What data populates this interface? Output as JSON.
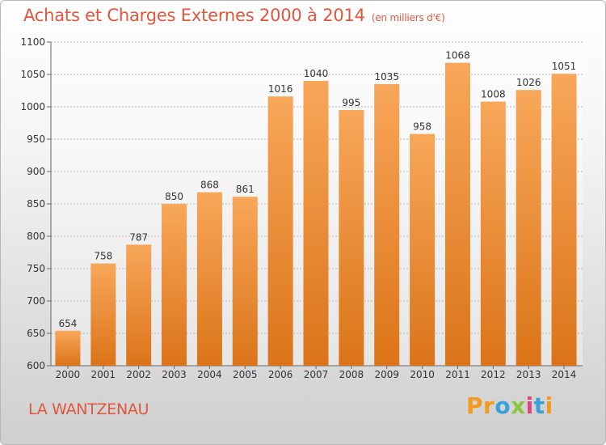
{
  "header": {
    "title": "Achats et Charges Externes 2000 à 2014",
    "subtitle": "(en milliers d'€)"
  },
  "footer": {
    "city": "LA WANTZENAU",
    "logo": "Proxiti"
  },
  "colors": {
    "accent": "#e0573e",
    "bar_top": "#f8a75a",
    "bar_bottom": "#db7418",
    "logo_letters": [
      "#f39a1e",
      "#f39a1e",
      "#3aa0d8",
      "#8cc63f",
      "#e0437d",
      "#3aa0d8",
      "#f39a1e"
    ]
  },
  "chart_data": {
    "type": "bar",
    "title": "Achats et Charges Externes 2000 à 2014",
    "subtitle": "(en milliers d'€)",
    "categories": [
      "2000",
      "2001",
      "2002",
      "2003",
      "2004",
      "2005",
      "2006",
      "2007",
      "2008",
      "2009",
      "2010",
      "2011",
      "2012",
      "2013",
      "2014"
    ],
    "values": [
      654,
      758,
      787,
      850,
      868,
      861,
      1016,
      1040,
      995,
      1035,
      958,
      1068,
      1008,
      1026,
      1051
    ],
    "ylim": [
      600,
      1100
    ],
    "yticks": [
      600,
      650,
      700,
      750,
      800,
      850,
      900,
      950,
      1000,
      1050,
      1100
    ],
    "grid": true,
    "xlabel": "",
    "ylabel": ""
  }
}
